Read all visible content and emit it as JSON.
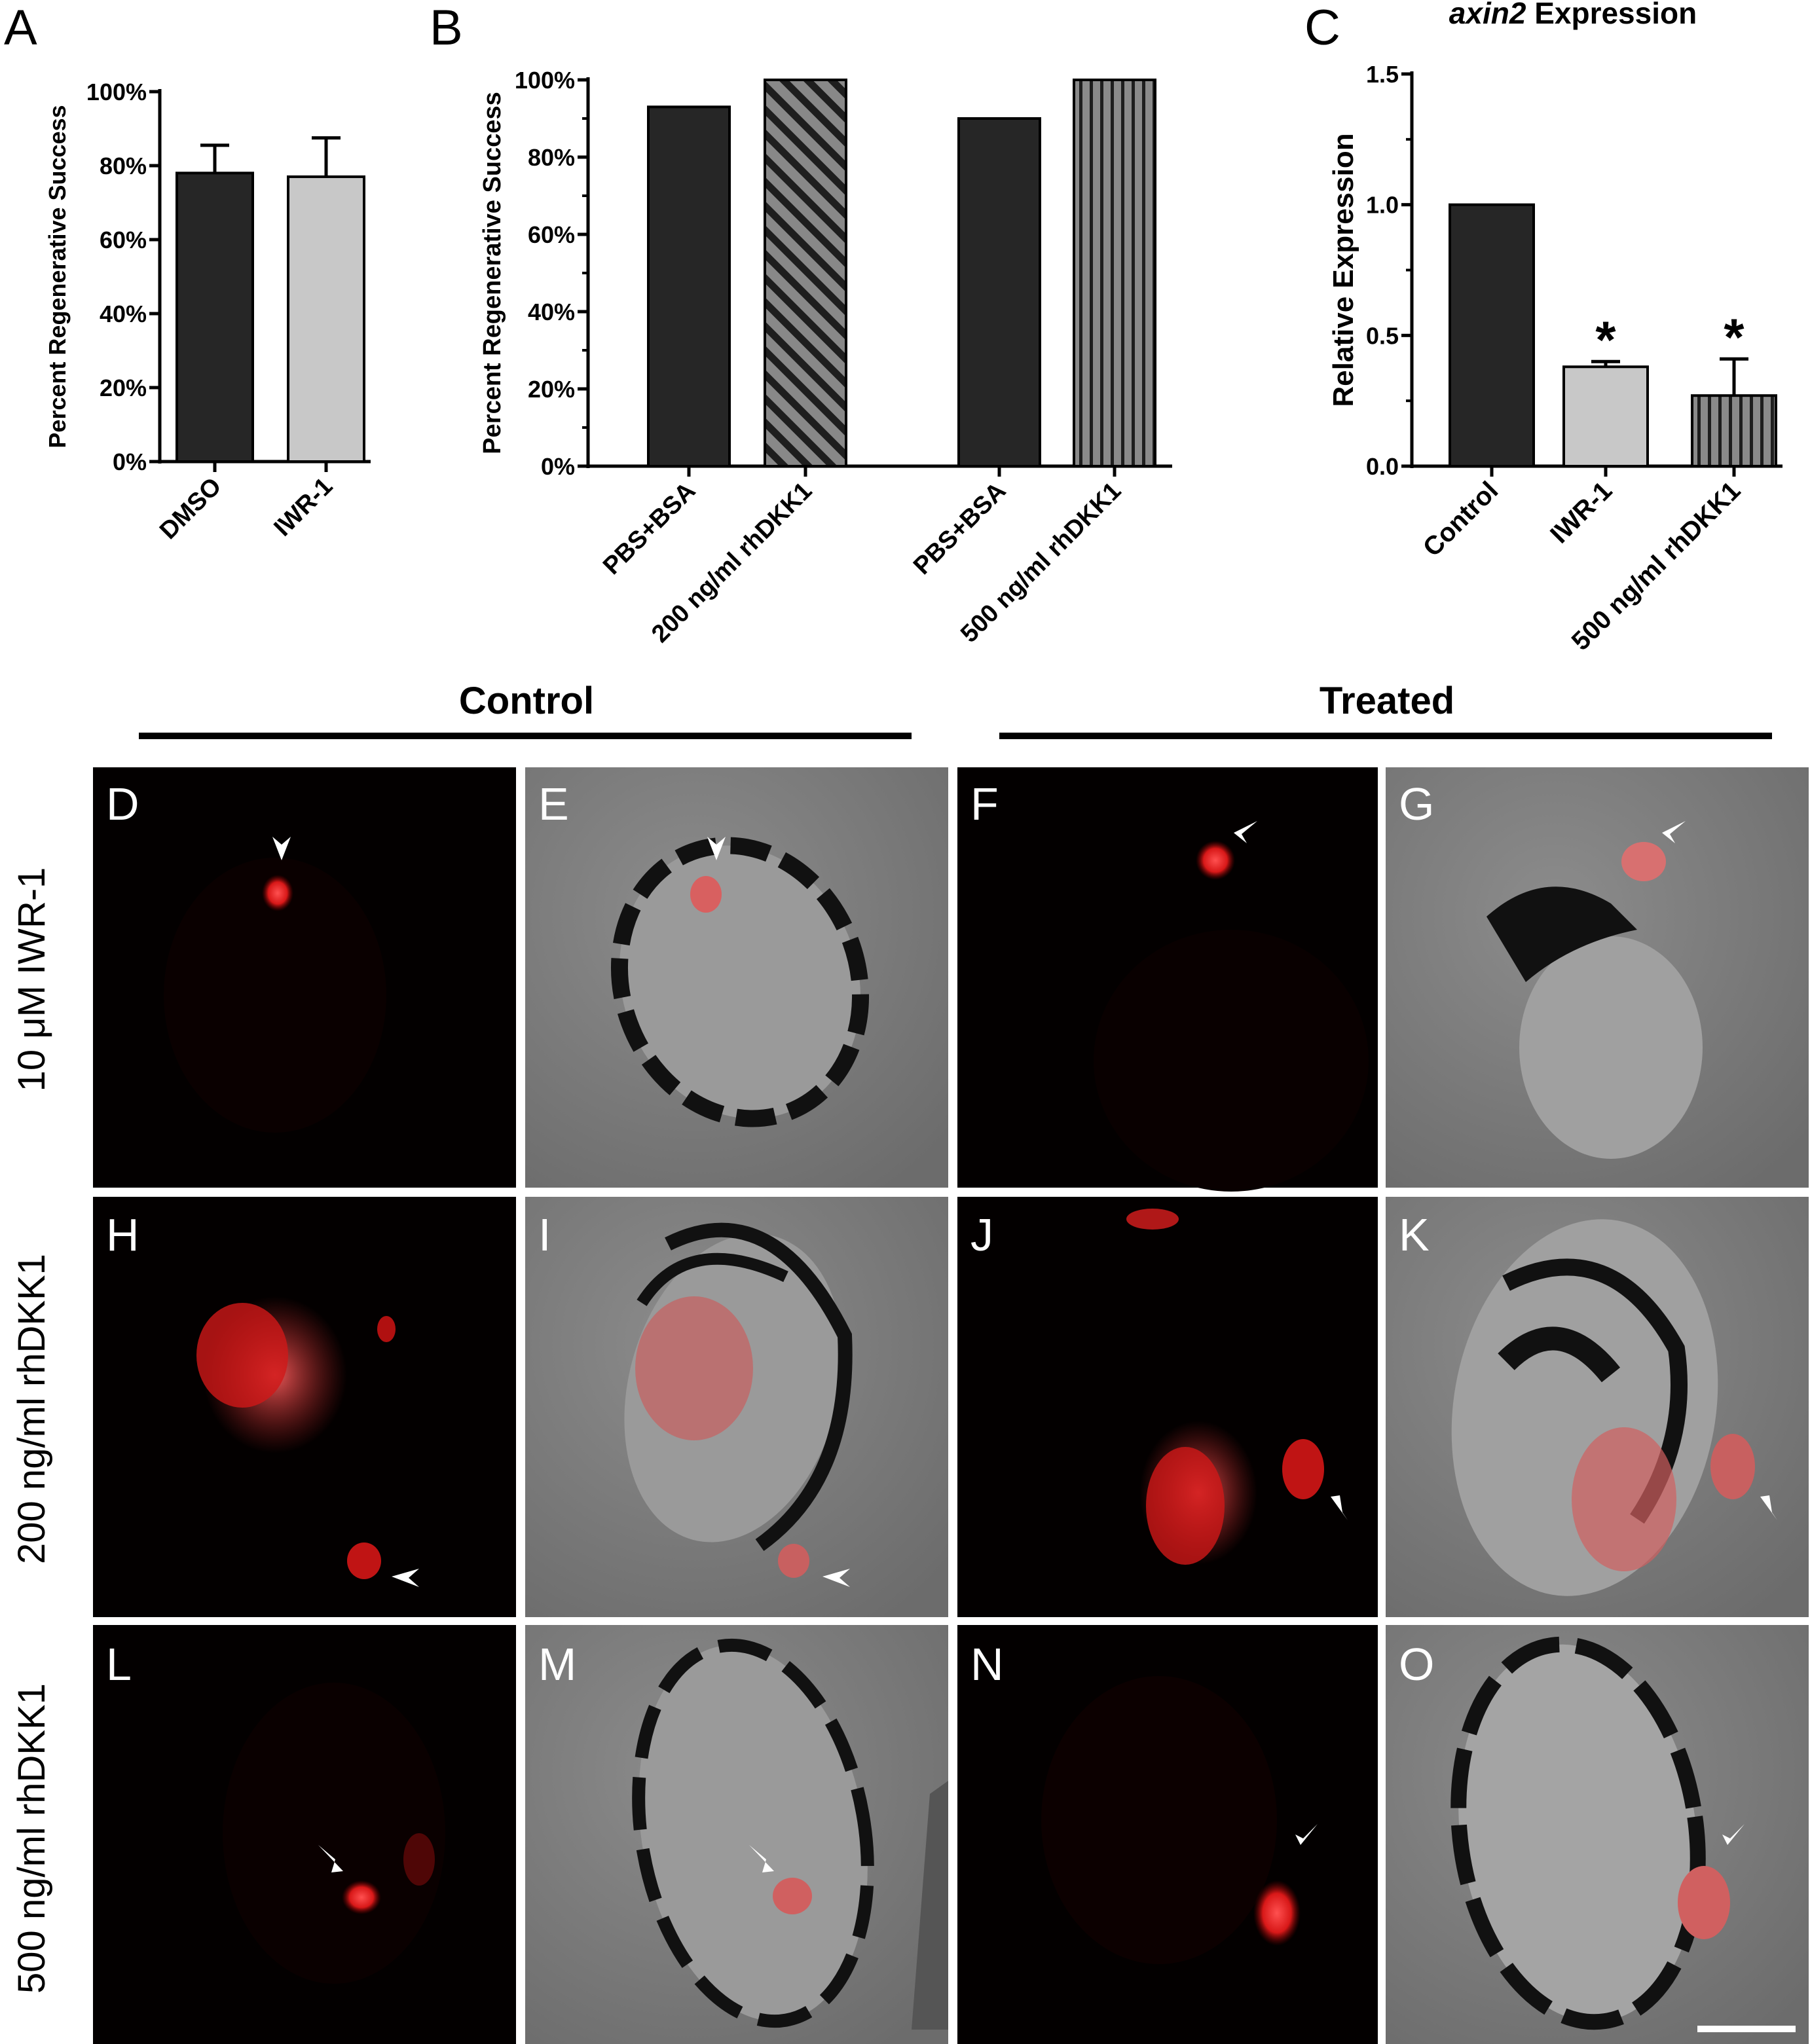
{
  "figure": {
    "panel_letters": [
      "A",
      "B",
      "C",
      "D",
      "E",
      "F",
      "G",
      "H",
      "I",
      "J",
      "K",
      "L",
      "M",
      "N",
      "O"
    ],
    "group_headers": {
      "control": "Control",
      "treated": "Treated"
    },
    "row_labels": [
      "10 μM IWR-1",
      "200 ng/ml rhDKK1",
      "500 ng/ml rhDKK1"
    ],
    "colors": {
      "dark_bar": "#262626",
      "light_bar": "#c8c8c8",
      "gray_bar": "#7a7a7a",
      "fluorescence": "#e02020",
      "dic_background": "#7d7d7d"
    }
  },
  "chart_data": [
    {
      "panel": "A",
      "type": "bar",
      "title": "",
      "ylabel": "Percent  Regenerative Success",
      "categories": [
        "DMSO",
        "IWR-1"
      ],
      "values": [
        78,
        77
      ],
      "errors": [
        7.5,
        10.5
      ],
      "ylim": [
        0,
        100
      ],
      "yticks": [
        "0%",
        "20%",
        "40%",
        "60%",
        "80%",
        "100%"
      ],
      "fills": [
        "dark",
        "light"
      ]
    },
    {
      "panel": "B",
      "type": "bar",
      "title": "",
      "ylabel": "Percent  Regenerative Success",
      "categories": [
        "PBS+BSA",
        "200 ng/ml rhDKK1",
        "PBS+BSA",
        "500 ng/ml rhDKK1"
      ],
      "values": [
        93,
        100,
        90,
        100
      ],
      "ylim": [
        0,
        100
      ],
      "yticks": [
        "0%",
        "20%",
        "40%",
        "60%",
        "80%",
        "100%"
      ],
      "fills": [
        "dark",
        "diagonal",
        "dark",
        "vertical"
      ]
    },
    {
      "panel": "C",
      "type": "bar",
      "title_italic": "axin2",
      "title_rest": " Expression",
      "ylabel": "Relative  Expression",
      "categories": [
        "Control",
        "IWR-1",
        "500 ng/ml rhDKK1"
      ],
      "values": [
        1.0,
        0.38,
        0.27
      ],
      "errors": [
        0,
        0.02,
        0.14
      ],
      "significance": [
        "",
        "*",
        "*"
      ],
      "ylim": [
        0,
        1.5
      ],
      "yticks": [
        "0.0",
        "0.5",
        "1.0",
        "1.5"
      ],
      "fills": [
        "dark",
        "light",
        "vertical"
      ]
    }
  ]
}
